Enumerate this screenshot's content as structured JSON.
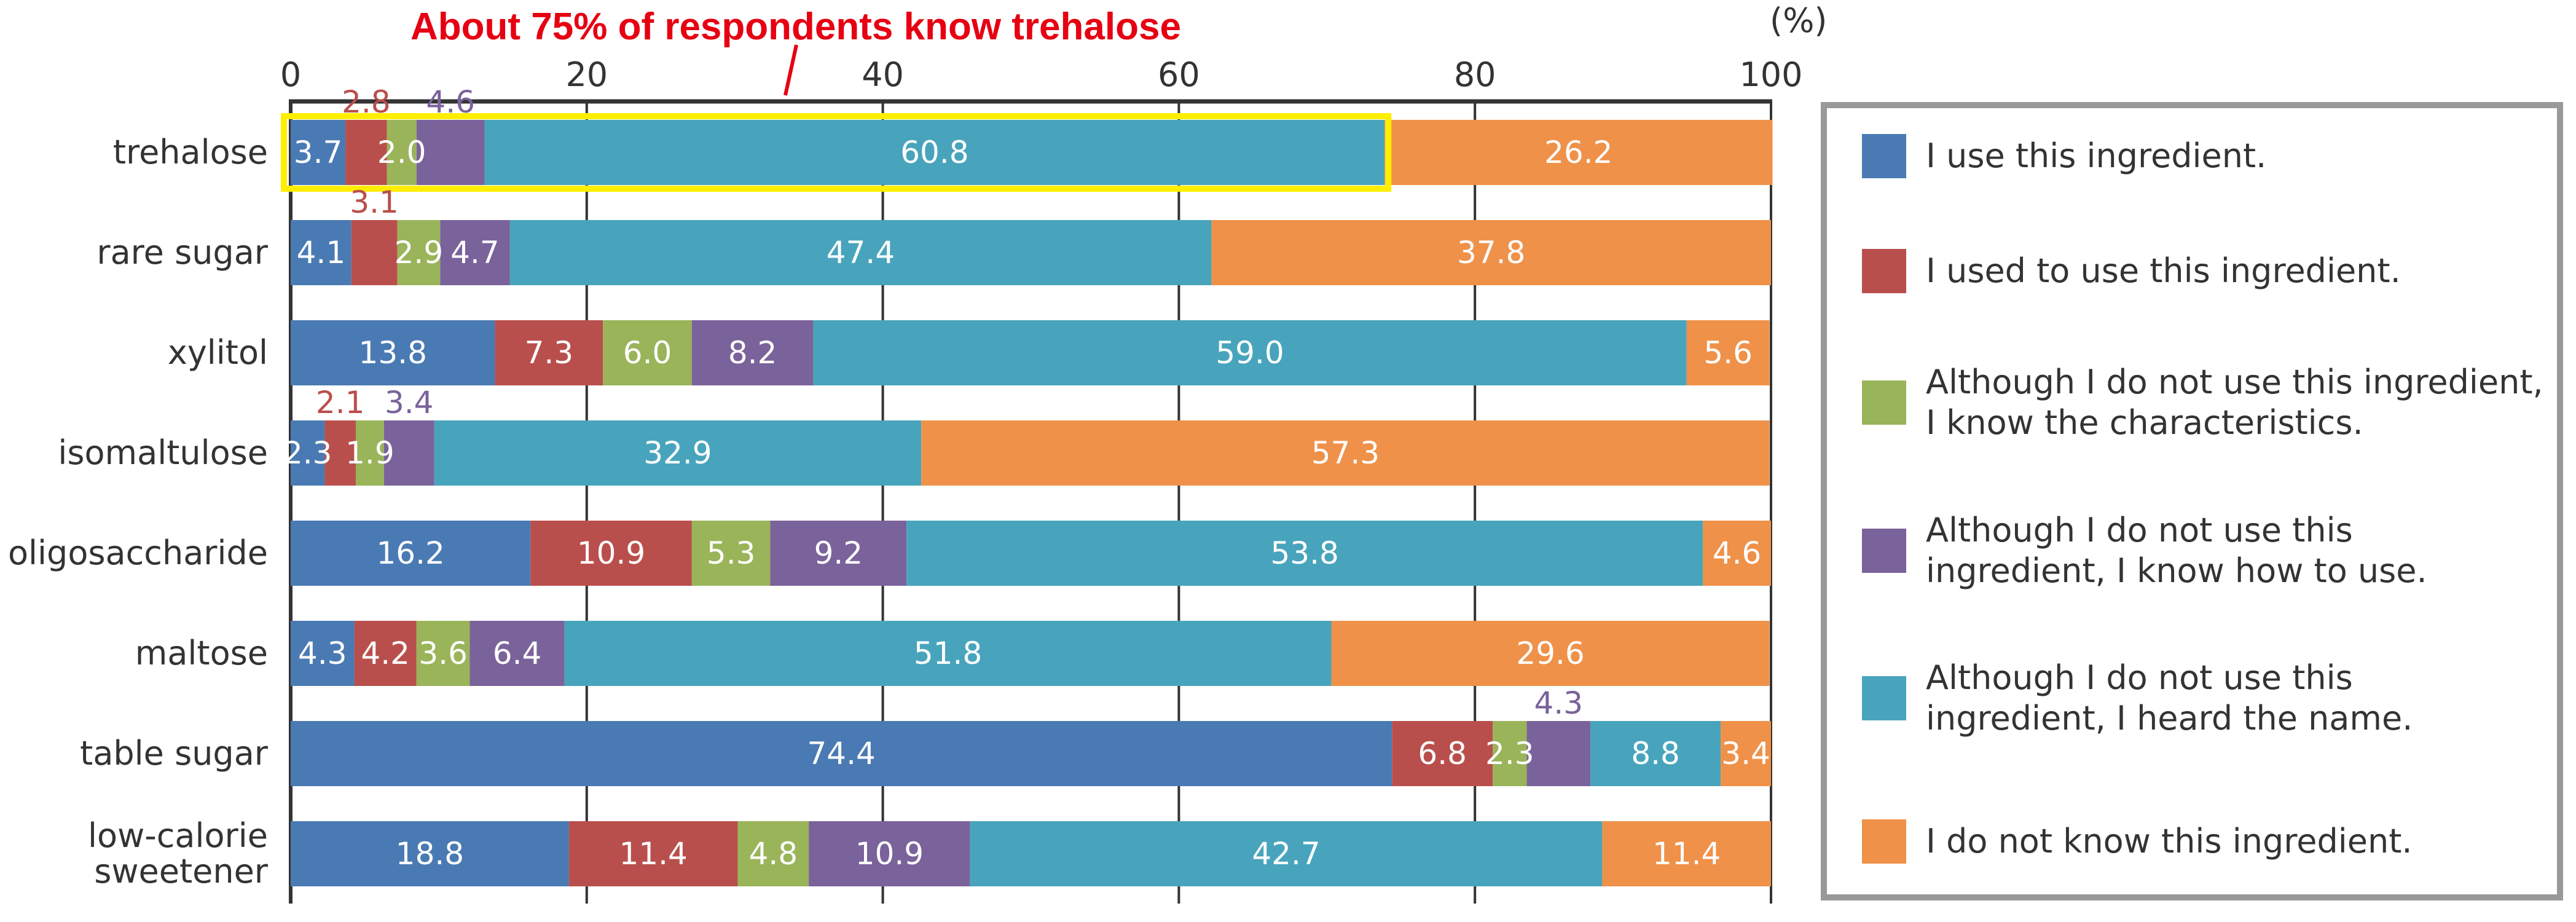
{
  "chart_data": {
    "type": "bar",
    "orientation": "horizontal",
    "stacked": true,
    "title": "About 75% of respondents know trehalose",
    "unit_label": "(%)",
    "xlim": [
      0,
      100
    ],
    "xticks": [
      0,
      20,
      40,
      60,
      80,
      100
    ],
    "grid": true,
    "legend_placement": "right",
    "categories": [
      "trehalose",
      "rare sugar",
      "xylitol",
      "isomaltulose",
      "oligosaccharide",
      "maltose",
      "table sugar",
      "low-calorie sweetener"
    ],
    "series": [
      {
        "name": "I use this ingredient.",
        "color": "#4a7ab3",
        "values": [
          3.7,
          4.1,
          13.8,
          2.3,
          16.2,
          4.3,
          74.4,
          18.8
        ]
      },
      {
        "name": "I used to use this ingredient.",
        "color": "#b94f4c",
        "values": [
          2.8,
          3.1,
          7.3,
          2.1,
          10.9,
          4.2,
          6.8,
          11.4
        ]
      },
      {
        "name": "Although I do not use this ingredient, I know the characteristics.",
        "color": "#9ab45a",
        "values": [
          2.0,
          2.9,
          6.0,
          1.9,
          5.3,
          3.6,
          2.3,
          4.8
        ]
      },
      {
        "name": "Although I do not use this ingredient, I know how to use.",
        "color": "#7a629b",
        "values": [
          4.6,
          4.7,
          8.2,
          3.4,
          9.2,
          6.4,
          4.3,
          10.9
        ]
      },
      {
        "name": "Although I do not use this ingredient, I heard the name.",
        "color": "#48a4bc",
        "values": [
          60.8,
          47.4,
          59.0,
          32.9,
          53.8,
          51.8,
          8.8,
          42.7
        ]
      },
      {
        "name": "I do not know this ingredient.",
        "color": "#ef9149",
        "values": [
          26.2,
          37.8,
          5.6,
          57.3,
          4.6,
          29.6,
          3.4,
          11.4
        ]
      }
    ],
    "legend_lines": [
      [
        "I use this ingredient."
      ],
      [
        "I used to use this ingredient."
      ],
      [
        "Although I do not use this ingredient,",
        "I know the characteristics."
      ],
      [
        "Although I do not use this",
        "ingredient, I know how to use."
      ],
      [
        "Although I do not use this",
        "ingredient, I heard the name."
      ],
      [
        "I do not know this ingredient."
      ]
    ],
    "category_lines": [
      [
        "trehalose"
      ],
      [
        "rare sugar"
      ],
      [
        "xylitol"
      ],
      [
        "isomaltulose"
      ],
      [
        "oligosaccharide"
      ],
      [
        "maltose"
      ],
      [
        "table sugar"
      ],
      [
        "low-calorie",
        "sweetener"
      ]
    ],
    "highlight": {
      "category": "trehalose",
      "through_series": 4,
      "color": "#ffee00"
    }
  }
}
